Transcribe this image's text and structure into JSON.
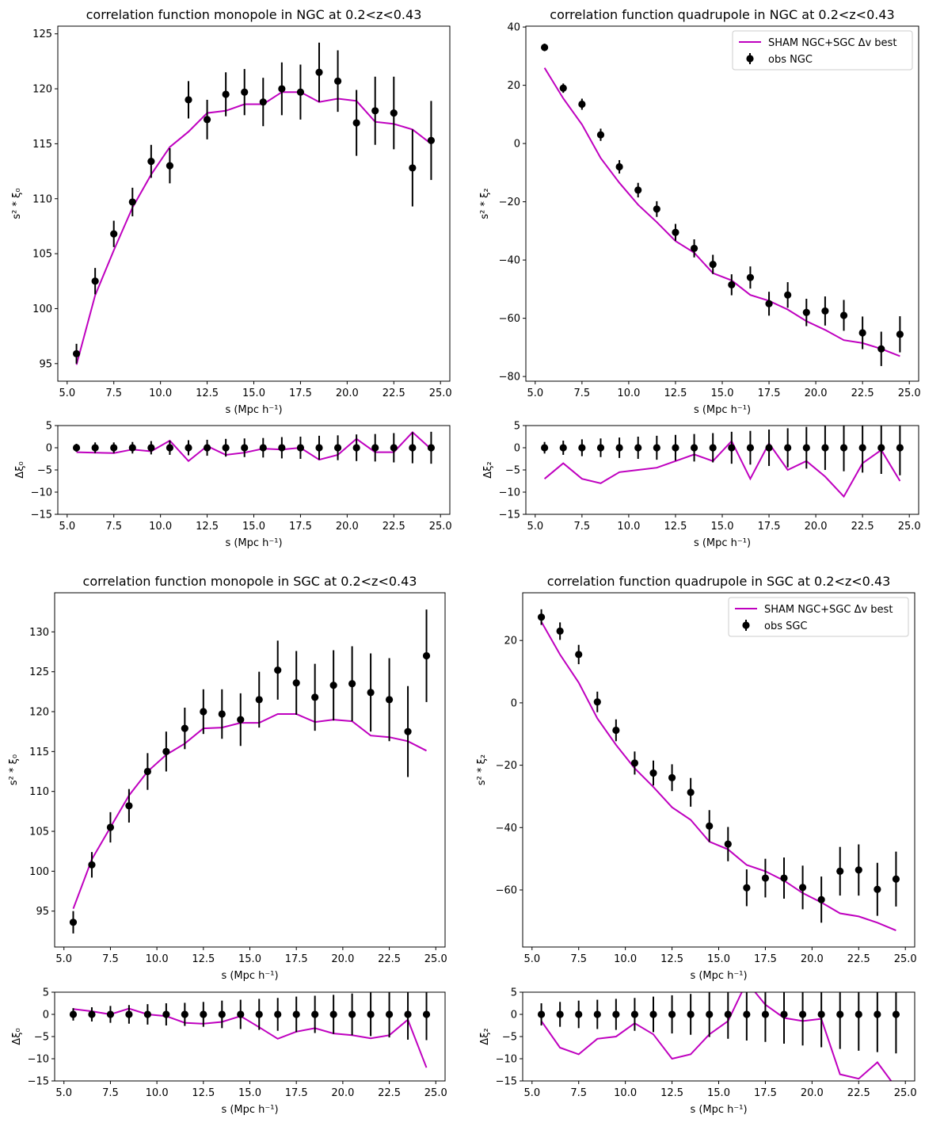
{
  "figure": {
    "background": "#ffffff",
    "model_color": "#bf00bf",
    "obs_color": "#000000"
  },
  "chart_data": [
    {
      "id": "ngc-mono",
      "type": "line",
      "title": "correlation function monopole in NGC at 0.2<z<0.43",
      "xlabel": "s (Mpc h⁻¹)",
      "ylabel": "s² * ξ₀",
      "xlim": [
        4.5,
        25.5
      ],
      "ylim": [
        93.4,
        125.7
      ],
      "yticks": [
        95,
        100,
        105,
        110,
        115,
        120,
        125
      ],
      "yticklabels": [
        "95",
        "100",
        "105",
        "110",
        "115",
        "120",
        "125"
      ],
      "legend": null,
      "x": [
        5.5,
        6.5,
        7.5,
        8.5,
        9.5,
        10.5,
        11.5,
        12.5,
        13.5,
        14.5,
        15.5,
        16.5,
        17.5,
        18.5,
        19.5,
        20.5,
        21.5,
        22.5,
        23.5,
        24.5
      ],
      "series": [
        {
          "kind": "line",
          "values": [
            94.9,
            101.2,
            105.3,
            109.2,
            112.2,
            114.7,
            116.1,
            117.8,
            118.0,
            118.6,
            118.6,
            119.7,
            119.7,
            118.8,
            119.1,
            118.9,
            117.0,
            116.8,
            116.3,
            115.0
          ]
        },
        {
          "kind": "errorbar",
          "values": [
            95.9,
            102.5,
            106.8,
            109.7,
            113.4,
            113.0,
            119.0,
            117.2,
            119.5,
            119.7,
            118.8,
            120.0,
            119.7,
            121.5,
            120.7,
            116.9,
            118.0,
            117.8,
            112.8,
            115.3
          ],
          "errors": [
            0.9,
            1.2,
            1.2,
            1.3,
            1.5,
            1.6,
            1.7,
            1.8,
            2.0,
            2.1,
            2.2,
            2.4,
            2.5,
            2.7,
            2.8,
            3.0,
            3.1,
            3.3,
            3.5,
            3.6
          ]
        }
      ]
    },
    {
      "id": "ngc-mono-res",
      "type": "line",
      "title": "",
      "xlabel": "s (Mpc h⁻¹)",
      "ylabel": "Δξ₀",
      "xlim": [
        4.5,
        25.5
      ],
      "ylim": [
        -15,
        5
      ],
      "yticks": [
        5,
        0,
        -5,
        -10,
        -15
      ],
      "yticklabels": [
        "5",
        "0",
        "−5",
        "−10",
        "−15"
      ],
      "legend": null,
      "x": [
        5.5,
        6.5,
        7.5,
        8.5,
        9.5,
        10.5,
        11.5,
        12.5,
        13.5,
        14.5,
        15.5,
        16.5,
        17.5,
        18.5,
        19.5,
        20.5,
        21.5,
        22.5,
        23.5,
        24.5
      ],
      "series": [
        {
          "kind": "line",
          "values": [
            -1.0,
            -1.1,
            -1.2,
            -0.4,
            -0.8,
            1.6,
            -3.0,
            0.4,
            -1.6,
            -1.1,
            -0.2,
            -0.4,
            0.0,
            -2.7,
            -1.6,
            2.0,
            -1.0,
            -1.0,
            3.5,
            -0.3
          ]
        },
        {
          "kind": "errorbar",
          "values": [
            0,
            0,
            0,
            0,
            0,
            0,
            0,
            0,
            0,
            0,
            0,
            0,
            0,
            0,
            0,
            0,
            0,
            0,
            0,
            0
          ],
          "errors": [
            0.9,
            1.2,
            1.2,
            1.3,
            1.5,
            1.6,
            1.7,
            1.8,
            2.0,
            2.1,
            2.2,
            2.4,
            2.5,
            2.7,
            2.8,
            3.0,
            3.1,
            3.3,
            3.5,
            3.6
          ]
        }
      ]
    },
    {
      "id": "ngc-quad",
      "type": "line",
      "title": "correlation function quadrupole in NGC at 0.2<z<0.43",
      "xlabel": "s (Mpc h⁻¹)",
      "ylabel": "s² * ξ₂",
      "xlim": [
        4.5,
        25.5
      ],
      "ylim": [
        -81.6,
        40.3
      ],
      "yticks": [
        40,
        20,
        0,
        -20,
        -40,
        -60,
        -80
      ],
      "yticklabels": [
        "40",
        "20",
        "0",
        "−20",
        "−40",
        "−60",
        "−80"
      ],
      "legend": {
        "position": "top-right",
        "entries": [
          "SHAM NGC+SGC Δv best",
          "obs NGC"
        ]
      },
      "x": [
        5.5,
        6.5,
        7.5,
        8.5,
        9.5,
        10.5,
        11.5,
        12.5,
        13.5,
        14.5,
        15.5,
        16.5,
        17.5,
        18.5,
        19.5,
        20.5,
        21.5,
        22.5,
        23.5,
        24.5
      ],
      "series": [
        {
          "kind": "line",
          "name": "SHAM NGC+SGC Δv best",
          "values": [
            26.0,
            15.5,
            6.5,
            -5.0,
            -13.5,
            -21.0,
            -27.0,
            -33.5,
            -37.5,
            -44.5,
            -47.0,
            -52.0,
            -54.0,
            -57.0,
            -61.0,
            -64.0,
            -67.5,
            -68.5,
            -70.5,
            -73.0
          ]
        },
        {
          "kind": "errorbar",
          "name": "obs NGC",
          "values": [
            33.0,
            19.0,
            13.5,
            3.0,
            -8.0,
            -16.0,
            -22.5,
            -30.5,
            -36.0,
            -41.5,
            -48.5,
            -46.0,
            -55.0,
            -52.0,
            -58.0,
            -57.5,
            -59.0,
            -65.0,
            -70.5,
            -65.5
          ],
          "errors": [
            1.3,
            1.6,
            1.9,
            2.1,
            2.3,
            2.5,
            2.7,
            2.9,
            3.1,
            3.3,
            3.6,
            3.8,
            4.1,
            4.4,
            4.7,
            5.0,
            5.3,
            5.6,
            5.9,
            6.2
          ]
        }
      ]
    },
    {
      "id": "ngc-quad-res",
      "type": "line",
      "title": "",
      "xlabel": "s (Mpc h⁻¹)",
      "ylabel": "Δξ₂",
      "xlim": [
        4.5,
        25.5
      ],
      "ylim": [
        -15,
        5
      ],
      "yticks": [
        5,
        0,
        -5,
        -10,
        -15
      ],
      "yticklabels": [
        "5",
        "0",
        "−5",
        "−10",
        "−15"
      ],
      "legend": null,
      "x": [
        5.5,
        6.5,
        7.5,
        8.5,
        9.5,
        10.5,
        11.5,
        12.5,
        13.5,
        14.5,
        15.5,
        16.5,
        17.5,
        18.5,
        19.5,
        20.5,
        21.5,
        22.5,
        23.5,
        24.5
      ],
      "series": [
        {
          "kind": "line",
          "values": [
            -7.0,
            -3.5,
            -7.0,
            -8.0,
            -5.5,
            -5.0,
            -4.5,
            -3.0,
            -1.5,
            -3.0,
            1.5,
            -7.0,
            1.0,
            -5.0,
            -3.0,
            -6.5,
            -11.0,
            -3.5,
            -0.5,
            -7.5
          ]
        },
        {
          "kind": "errorbar",
          "values": [
            0,
            0,
            0,
            0,
            0,
            0,
            0,
            0,
            0,
            0,
            0,
            0,
            0,
            0,
            0,
            0,
            0,
            0,
            0,
            0
          ],
          "errors": [
            1.3,
            1.6,
            1.9,
            2.1,
            2.3,
            2.5,
            2.7,
            2.9,
            3.1,
            3.3,
            3.6,
            3.8,
            4.1,
            4.4,
            4.7,
            5.0,
            5.3,
            5.6,
            5.9,
            6.2
          ]
        }
      ]
    },
    {
      "id": "sgc-mono",
      "type": "line",
      "title": "correlation function monopole in SGC at 0.2<z<0.43",
      "xlabel": "s (Mpc h⁻¹)",
      "ylabel": "s² * ξ₀",
      "xlim": [
        4.5,
        25.5
      ],
      "ylim": [
        90.5,
        134.9
      ],
      "yticks": [
        95,
        100,
        105,
        110,
        115,
        120,
        125,
        130
      ],
      "yticklabels": [
        "95",
        "100",
        "105",
        "110",
        "115",
        "120",
        "125",
        "130"
      ],
      "legend": null,
      "x": [
        5.5,
        6.5,
        7.5,
        8.5,
        9.5,
        10.5,
        11.5,
        12.5,
        13.5,
        14.5,
        15.5,
        16.5,
        17.5,
        18.5,
        19.5,
        20.5,
        21.5,
        22.5,
        23.5,
        24.5
      ],
      "series": [
        {
          "kind": "line",
          "values": [
            95.3,
            101.5,
            105.5,
            109.5,
            112.5,
            114.6,
            116.0,
            117.9,
            118.0,
            118.6,
            118.6,
            119.7,
            119.7,
            118.7,
            119.0,
            118.8,
            117.0,
            116.8,
            116.3,
            115.1
          ]
        },
        {
          "kind": "errorbar",
          "values": [
            93.6,
            100.8,
            105.5,
            108.2,
            112.5,
            115.0,
            117.9,
            120.0,
            119.7,
            119.0,
            121.5,
            125.2,
            123.6,
            121.8,
            123.3,
            123.5,
            122.4,
            121.5,
            117.5,
            127.0
          ],
          "errors": [
            1.4,
            1.6,
            1.9,
            2.1,
            2.3,
            2.5,
            2.6,
            2.8,
            3.1,
            3.3,
            3.5,
            3.7,
            4.0,
            4.2,
            4.4,
            4.7,
            4.9,
            5.2,
            5.7,
            5.8
          ]
        }
      ]
    },
    {
      "id": "sgc-mono-res",
      "type": "line",
      "title": "",
      "xlabel": "s (Mpc h⁻¹)",
      "ylabel": "Δξ₀",
      "xlim": [
        4.5,
        25.5
      ],
      "ylim": [
        -15,
        5
      ],
      "yticks": [
        5,
        0,
        -5,
        -10,
        -15
      ],
      "yticklabels": [
        "5",
        "0",
        "−5",
        "−10",
        "−15"
      ],
      "legend": null,
      "x": [
        5.5,
        6.5,
        7.5,
        8.5,
        9.5,
        10.5,
        11.5,
        12.5,
        13.5,
        14.5,
        15.5,
        16.5,
        17.5,
        18.5,
        19.5,
        20.5,
        21.5,
        22.5,
        23.5,
        24.5
      ],
      "series": [
        {
          "kind": "line",
          "values": [
            1.2,
            0.7,
            0.0,
            1.3,
            0.0,
            -0.4,
            -1.9,
            -2.1,
            -1.7,
            -0.4,
            -2.9,
            -5.5,
            -3.9,
            -3.1,
            -4.3,
            -4.7,
            -5.4,
            -4.7,
            -1.2,
            -12.0
          ]
        },
        {
          "kind": "errorbar",
          "values": [
            0,
            0,
            0,
            0,
            0,
            0,
            0,
            0,
            0,
            0,
            0,
            0,
            0,
            0,
            0,
            0,
            0,
            0,
            0,
            0
          ],
          "errors": [
            1.4,
            1.6,
            1.9,
            2.1,
            2.3,
            2.5,
            2.6,
            2.8,
            3.1,
            3.3,
            3.5,
            3.7,
            4.0,
            4.2,
            4.4,
            4.7,
            4.9,
            5.2,
            5.7,
            5.8
          ]
        }
      ]
    },
    {
      "id": "sgc-quad",
      "type": "line",
      "title": "correlation function quadrupole in SGC at 0.2<z<0.43",
      "xlabel": "s (Mpc h⁻¹)",
      "ylabel": "s² * ξ₂",
      "xlim": [
        4.5,
        25.5
      ],
      "ylim": [
        -78.3,
        35.3
      ],
      "yticks": [
        20,
        0,
        -20,
        -40,
        -60
      ],
      "yticklabels": [
        "20",
        "0",
        "−20",
        "−40",
        "−60"
      ],
      "legend": {
        "position": "top-right",
        "entries": [
          "SHAM NGC+SGC Δv best",
          "obs SGC"
        ]
      },
      "x": [
        5.5,
        6.5,
        7.5,
        8.5,
        9.5,
        10.5,
        11.5,
        12.5,
        13.5,
        14.5,
        15.5,
        16.5,
        17.5,
        18.5,
        19.5,
        20.5,
        21.5,
        22.5,
        23.5,
        24.5
      ],
      "series": [
        {
          "kind": "line",
          "name": "SHAM NGC+SGC Δv best",
          "values": [
            26.0,
            15.5,
            6.5,
            -5.0,
            -13.5,
            -21.0,
            -27.0,
            -33.5,
            -37.5,
            -44.5,
            -47.0,
            -52.0,
            -54.0,
            -57.0,
            -61.0,
            -64.0,
            -67.5,
            -68.5,
            -70.5,
            -73.0
          ]
        },
        {
          "kind": "errorbar",
          "name": "obs SGC",
          "values": [
            27.5,
            23.0,
            15.5,
            0.3,
            -8.8,
            -19.3,
            -22.5,
            -24.0,
            -28.7,
            -39.5,
            -45.3,
            -59.3,
            -56.2,
            -56.2,
            -59.2,
            -63.1,
            -54.0,
            -53.6,
            -59.8,
            -56.5
          ],
          "errors": [
            2.5,
            2.8,
            3.1,
            3.3,
            3.5,
            3.7,
            4.0,
            4.3,
            4.6,
            5.1,
            5.5,
            5.9,
            6.2,
            6.6,
            7.0,
            7.4,
            7.8,
            8.2,
            8.5,
            8.8
          ]
        }
      ]
    },
    {
      "id": "sgc-quad-res",
      "type": "line",
      "title": "",
      "xlabel": "s (Mpc h⁻¹)",
      "ylabel": "Δξ₂",
      "xlim": [
        4.5,
        25.5
      ],
      "ylim": [
        -15,
        5
      ],
      "yticks": [
        5,
        0,
        -5,
        -10,
        -15
      ],
      "yticklabels": [
        "5",
        "0",
        "−5",
        "−10",
        "−15"
      ],
      "legend": null,
      "x": [
        5.5,
        6.5,
        7.5,
        8.5,
        9.5,
        10.5,
        11.5,
        12.5,
        13.5,
        14.5,
        15.5,
        16.5,
        17.5,
        18.5,
        19.5,
        20.5,
        21.5,
        22.5,
        23.5,
        24.5
      ],
      "series": [
        {
          "kind": "line",
          "values": [
            -1.5,
            -7.5,
            -9.0,
            -5.5,
            -5.0,
            -2.0,
            -4.5,
            -10.0,
            -9.0,
            -4.5,
            -1.5,
            7.3,
            2.2,
            -0.8,
            -1.5,
            -1.0,
            -13.5,
            -14.5,
            -10.8,
            -16.5
          ]
        },
        {
          "kind": "errorbar",
          "values": [
            0,
            0,
            0,
            0,
            0,
            0,
            0,
            0,
            0,
            0,
            0,
            0,
            0,
            0,
            0,
            0,
            0,
            0,
            0,
            0
          ],
          "errors": [
            2.5,
            2.8,
            3.1,
            3.3,
            3.5,
            3.7,
            4.0,
            4.3,
            4.6,
            5.1,
            5.5,
            5.9,
            6.2,
            6.6,
            7.0,
            7.4,
            7.8,
            8.2,
            8.5,
            8.8
          ]
        }
      ]
    }
  ]
}
